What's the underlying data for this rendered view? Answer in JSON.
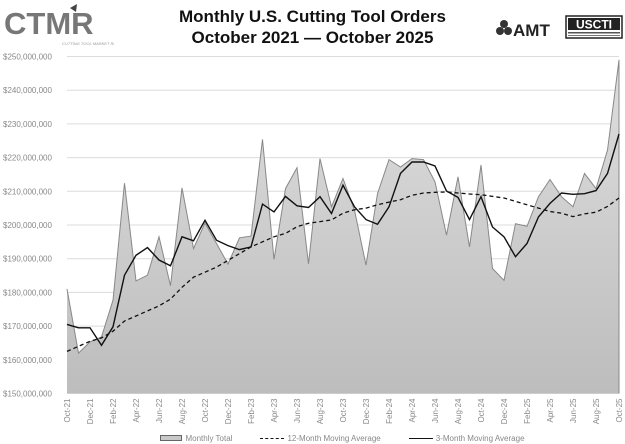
{
  "header": {
    "title_line1": "Monthly U.S. Cutting Tool Orders",
    "title_line2": "October 2021 — October 2025",
    "logo_left": "CTMR",
    "logo_left_sub": "CUTTING TOOL MARKET REPORT",
    "logo_right_1": "AMT",
    "logo_right_2": "USCTI"
  },
  "chart_data": {
    "type": "area",
    "title": "Monthly U.S. Cutting Tool Orders October 2021 — October 2025",
    "ylim": [
      150000000,
      250000000
    ],
    "yticks": [
      "$150,000,000",
      "$160,000,000",
      "$170,000,000",
      "$180,000,000",
      "$190,000,000",
      "$200,000,000",
      "$210,000,000",
      "$220,000,000",
      "$230,000,000",
      "$240,000,000",
      "$250,000,000"
    ],
    "grid": true,
    "legend_position": "bottom",
    "x_tick_labels": [
      "Oct-21",
      "Dec-21",
      "Feb-22",
      "Apr-22",
      "Jun-22",
      "Aug-22",
      "Oct-22",
      "Dec-22",
      "Feb-23",
      "Apr-23",
      "Jun-23",
      "Aug-23",
      "Oct-23",
      "Dec-23",
      "Feb-24",
      "Apr-24",
      "Jun-24",
      "Aug-24",
      "Oct-24",
      "Dec-24",
      "Feb-25",
      "Apr-25",
      "Jun-25",
      "Aug-25",
      "Oct-25"
    ],
    "unit": "millions USD",
    "series": [
      {
        "name": "Monthly Total",
        "style": "area",
        "color": "#c8c8c8",
        "values": [
          181,
          162,
          165.3,
          166.8,
          177.7,
          212.4,
          183.4,
          185.1,
          196.5,
          182,
          211,
          193,
          200.6,
          194.5,
          188.4,
          196.2,
          196.7,
          225.4,
          189.8,
          210.8,
          217,
          188.5,
          219.7,
          205.4,
          213.8,
          204.4,
          188.1,
          209.3,
          219.4,
          217.2,
          219.7,
          219.4,
          212.8,
          197,
          214.3,
          193.5,
          217.8,
          187.1,
          183.6,
          200.4,
          199.6,
          208.4,
          213.5,
          208.4,
          205.4,
          215.3,
          210.8,
          222.2,
          249
        ]
      },
      {
        "name": "12-Month Moving Average",
        "style": "dashed",
        "color": "#111111",
        "values": [
          162.5,
          164,
          165.5,
          166.5,
          168.5,
          171.5,
          173,
          174.5,
          176,
          178,
          181.5,
          184.5,
          186,
          187.5,
          189.5,
          191.5,
          193.5,
          195,
          196.5,
          197.5,
          199.5,
          200.5,
          201,
          201.5,
          203.5,
          204.5,
          205,
          206,
          206.8,
          207.5,
          208.8,
          209.5,
          209.7,
          209.8,
          209.5,
          209.2,
          209,
          208.5,
          208,
          207,
          206,
          205,
          204,
          203.5,
          202.5,
          203.3,
          203.8,
          205.5,
          208
        ]
      },
      {
        "name": "3-Month Moving Average",
        "style": "solid",
        "color": "#111111",
        "values": [
          170.5,
          169.5,
          169.5,
          164.3,
          169.8,
          185.1,
          191,
          193.3,
          189.6,
          187.9,
          196.5,
          195.3,
          201.4,
          195.5,
          193.9,
          192.7,
          193.5,
          206.2,
          203.9,
          208.5,
          205.7,
          205.2,
          208.4,
          203.4,
          211.8,
          205.4,
          201.6,
          200.2,
          205.4,
          215.3,
          218.7,
          218.7,
          217.5,
          210.1,
          208.2,
          201.6,
          208.4,
          199.4,
          196.5,
          190.6,
          194.5,
          202.4,
          206.4,
          209.5,
          209.1,
          209.3,
          210.2,
          215.3,
          227
        ]
      }
    ]
  },
  "legend": {
    "items": [
      "Monthly Total",
      "12-Month Moving Average",
      "3-Month Moving Average"
    ]
  }
}
